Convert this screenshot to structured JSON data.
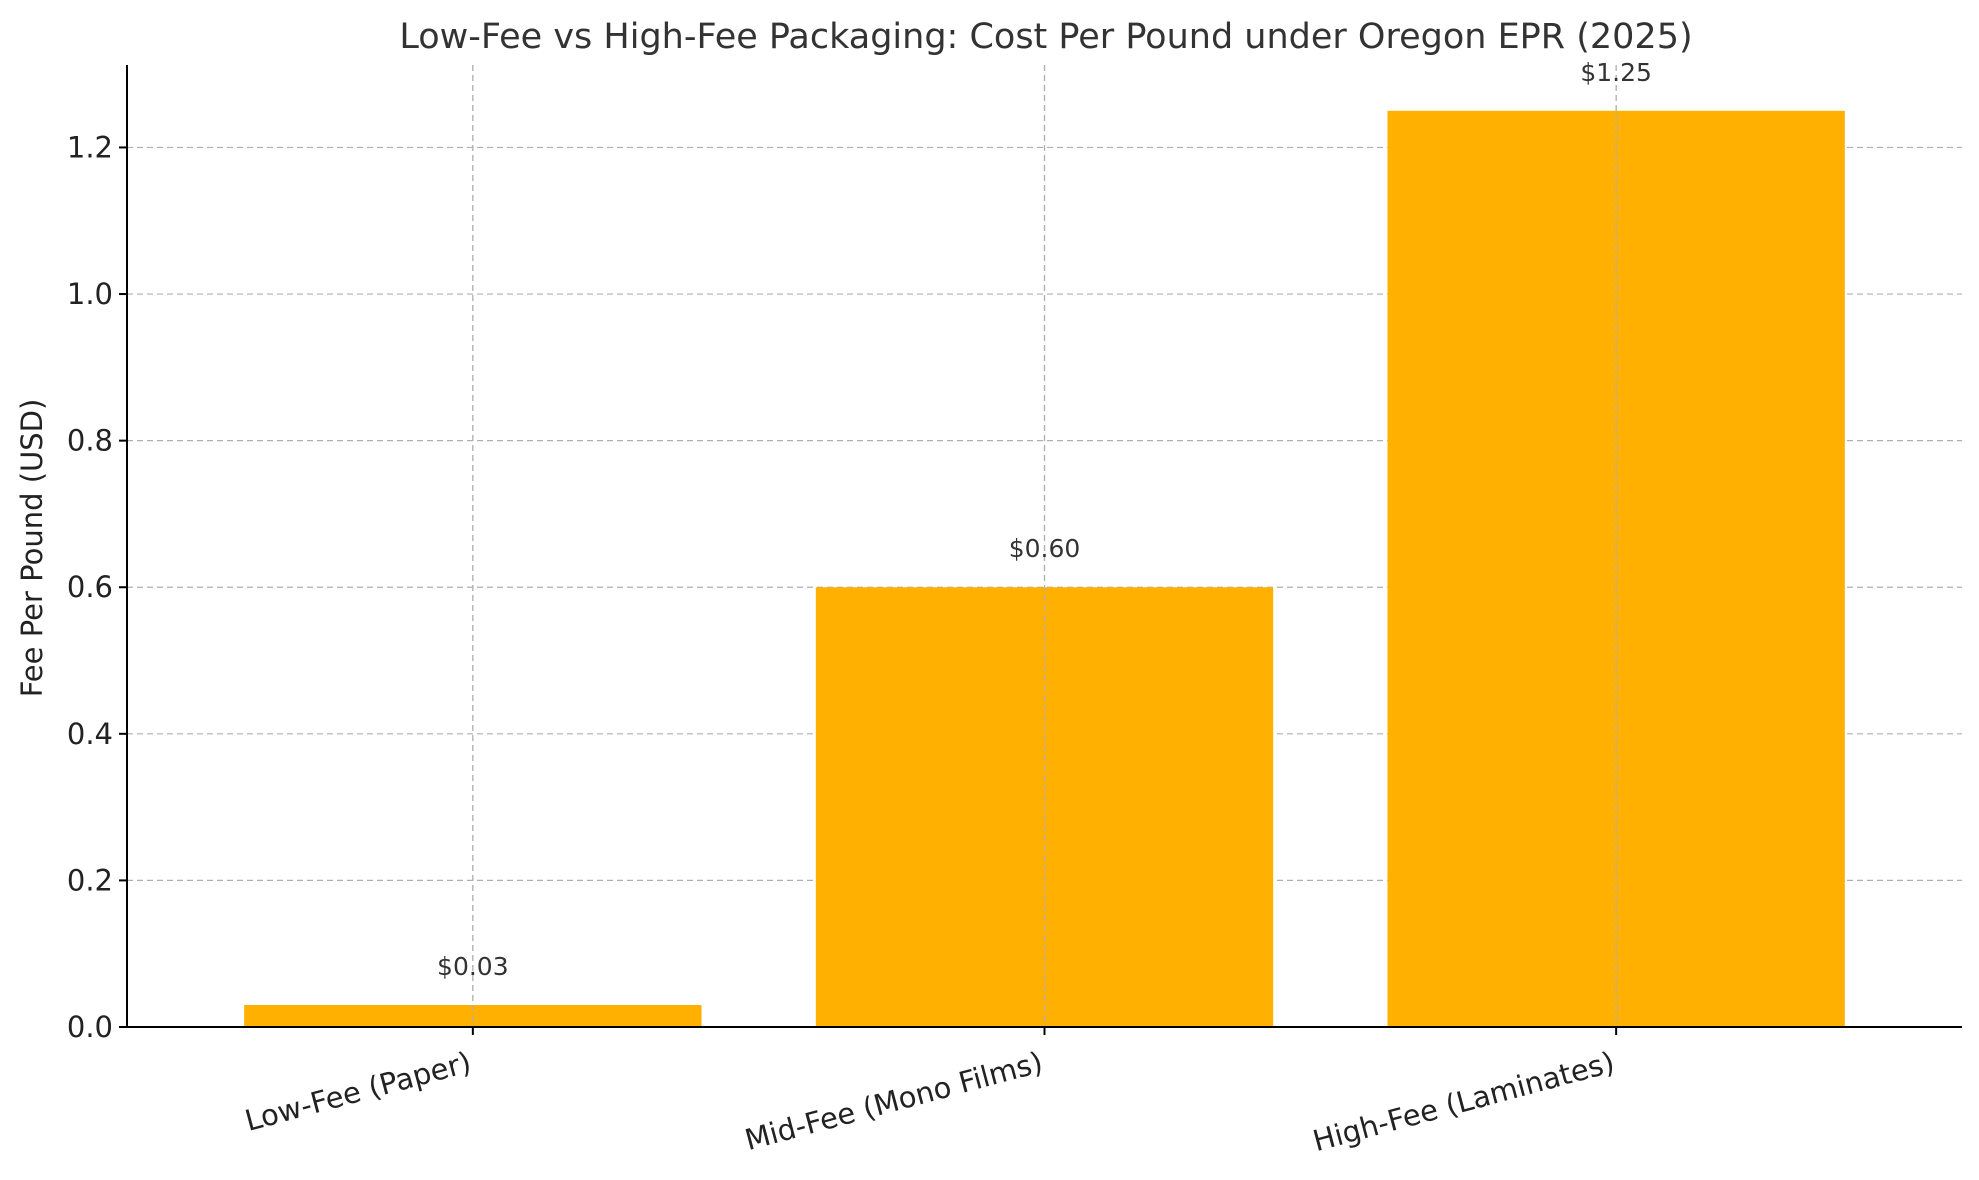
{
  "chart_data": {
    "type": "bar",
    "title": "Low-Fee vs High-Fee Packaging: Cost Per Pound under Oregon EPR (2025)",
    "xlabel": "",
    "ylabel": "Fee Per Pound (USD)",
    "categories": [
      "Low-Fee (Paper)",
      "Mid-Fee (Mono Films)",
      "High-Fee (Laminates)"
    ],
    "values": [
      0.03,
      0.6,
      1.25
    ],
    "data_labels": [
      "$0.03",
      "$0.60",
      "$1.25"
    ],
    "ylim": [
      0,
      1.3125
    ],
    "yticks": [
      0.0,
      0.2,
      0.4,
      0.6,
      0.8,
      1.0,
      1.2
    ],
    "ytick_labels": [
      "0.0",
      "0.2",
      "0.4",
      "0.6",
      "0.8",
      "1.0",
      "1.2"
    ],
    "grid": true,
    "bar_color": "#FFB000",
    "xtick_rotation": 15
  }
}
